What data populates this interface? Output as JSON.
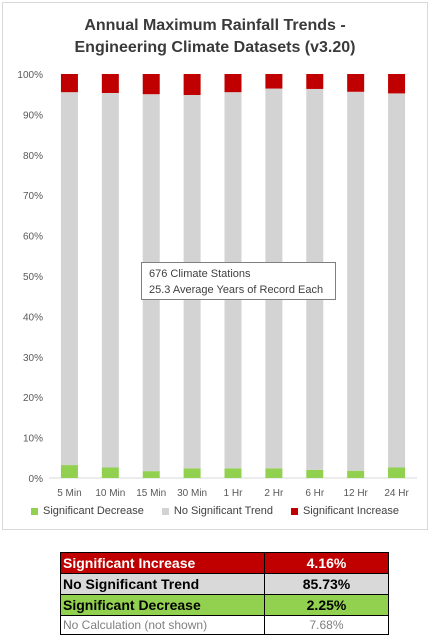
{
  "chart_data": {
    "type": "bar",
    "stacked": true,
    "title_lines": [
      "Annual Maximum Rainfall Trends -",
      "Engineering Climate Datasets (v3.20)"
    ],
    "categories": [
      "5 Min",
      "10 Min",
      "15 Min",
      "30 Min",
      "1 Hr",
      "2 Hr",
      "6 Hr",
      "12 Hr",
      "24 Hr"
    ],
    "series": [
      {
        "name": "Significant Decrease",
        "color": "#92d050",
        "values": [
          3.2,
          2.6,
          1.7,
          2.4,
          2.4,
          2.4,
          2.0,
          1.8,
          2.6
        ]
      },
      {
        "name": "No Significant Trend",
        "color": "#d3d3d3",
        "values": [
          92.3,
          92.7,
          93.3,
          92.4,
          93.1,
          94.0,
          94.3,
          93.8,
          92.6
        ]
      },
      {
        "name": "Significant Increase",
        "color": "#c00000",
        "values": [
          4.5,
          4.7,
          5.0,
          5.2,
          4.5,
          3.6,
          3.7,
          4.4,
          4.8
        ]
      }
    ],
    "ylim": [
      0,
      100
    ],
    "y_ticks": [
      0,
      10,
      20,
      30,
      40,
      50,
      60,
      70,
      80,
      90,
      100
    ],
    "y_tick_labels": [
      "0%",
      "10%",
      "20%",
      "30%",
      "40%",
      "50%",
      "60%",
      "70%",
      "80%",
      "90%",
      "100%"
    ],
    "grid": false,
    "legend_position": "bottom",
    "annotation": [
      "676 Climate Stations",
      "25.3 Average Years of Record Each"
    ]
  },
  "summary_table": [
    {
      "label": "Significant Increase",
      "value": "4.16%"
    },
    {
      "label": "No Significant Trend",
      "value": "85.73%"
    },
    {
      "label": "Significant Decrease",
      "value": "2.25%"
    },
    {
      "label": "No Calculation (not shown)",
      "value": "7.68%"
    }
  ]
}
